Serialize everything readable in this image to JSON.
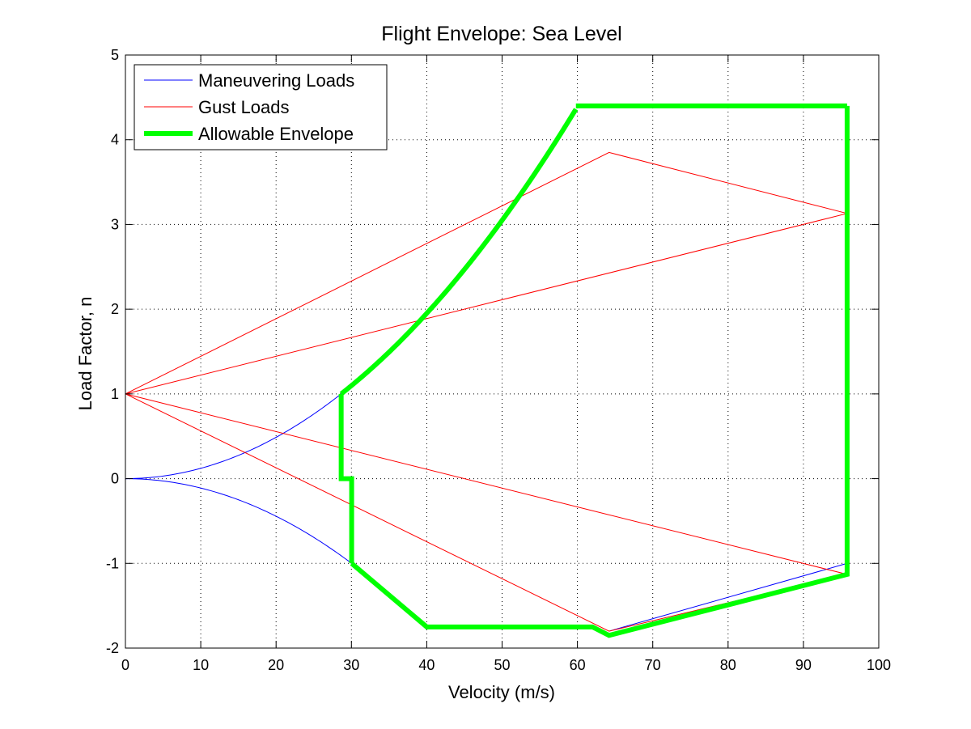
{
  "chart_data": {
    "type": "line",
    "title": "Flight Envelope: Sea Level",
    "xlabel": "Velocity (m/s)",
    "ylabel": "Load Factor, n",
    "xlim": [
      0,
      100
    ],
    "ylim": [
      -2,
      5
    ],
    "xticks": [
      0,
      10,
      20,
      30,
      40,
      50,
      60,
      70,
      80,
      90,
      100
    ],
    "xtick_labels": [
      "0",
      "10",
      "20",
      "30",
      "40",
      "50",
      "60",
      "70",
      "80",
      "90",
      "100"
    ],
    "yticks": [
      -2,
      -1,
      0,
      1,
      2,
      3,
      4,
      5
    ],
    "ytick_labels": [
      "-2",
      "-1",
      "0",
      "1",
      "2",
      "3",
      "4",
      "5"
    ],
    "grid": true,
    "legend_position": "top-left",
    "series": [
      {
        "name": "Maneuvering Loads",
        "color": "#0000ff",
        "width": 1,
        "segments": [
          {
            "kind": "curve",
            "k": 0.0012195,
            "v_end": 28.64
          },
          {
            "kind": "curve",
            "k": -0.0011091,
            "v_end": 30.03
          },
          {
            "kind": "points",
            "x": [
              64.2,
              95.8
            ],
            "y": [
              -1.8,
              -1.0
            ]
          }
        ]
      },
      {
        "name": "Gust Loads",
        "color": "#ff0000",
        "width": 1,
        "segments": [
          {
            "kind": "points",
            "x": [
              0,
              64.2,
              95.8,
              0
            ],
            "y": [
              1,
              3.85,
              3.13,
              1
            ]
          },
          {
            "kind": "points",
            "x": [
              0,
              64.2,
              95.8,
              0
            ],
            "y": [
              1,
              -1.8,
              -1.13,
              1
            ]
          }
        ]
      },
      {
        "name": "Allowable Envelope",
        "color": "#00ff00",
        "width": 6,
        "segments": [
          {
            "kind": "points",
            "x": [
              28.64,
              28.64,
              30.03,
              30.03
            ],
            "y": [
              1.0,
              0.0,
              0.0,
              -1.0
            ]
          },
          {
            "kind": "points",
            "x": [
              30.03,
              40.0,
              62.0,
              64.2,
              95.8,
              95.8
            ],
            "y": [
              -1.0,
              -1.75,
              -1.75,
              -1.85,
              -1.13,
              4.4
            ]
          },
          {
            "kind": "points",
            "x": [
              95.8,
              59.8
            ],
            "y": [
              4.4,
              4.4
            ]
          },
          {
            "kind": "curve",
            "k": 0.0012195,
            "v_start": 28.64,
            "v_end": 59.8,
            "reverse": true
          }
        ]
      }
    ]
  }
}
